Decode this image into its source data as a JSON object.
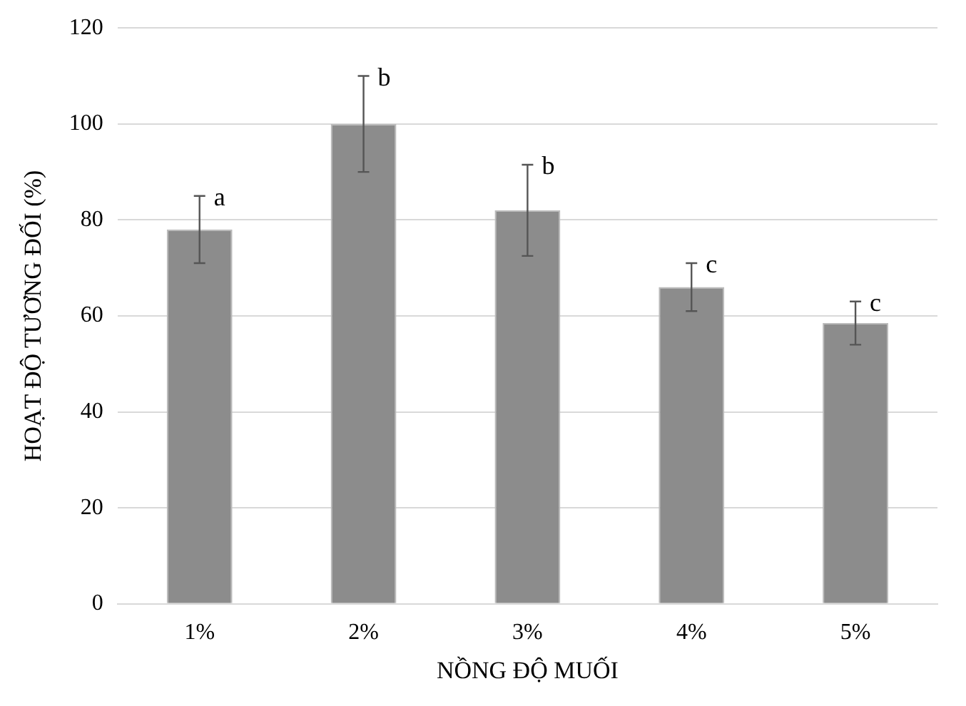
{
  "chart_data": {
    "type": "bar",
    "xlabel": "NỒNG ĐỘ MUỐI",
    "ylabel": "HOẠT ĐỘ TƯƠNG ĐỐI (%)",
    "categories": [
      "1%",
      "2%",
      "3%",
      "4%",
      "5%"
    ],
    "values": [
      78,
      100,
      82,
      66,
      58.5
    ],
    "errors": [
      7,
      10,
      9.5,
      5,
      4.5
    ],
    "color": "#8c8c8c",
    "ylim": [
      0,
      120
    ],
    "yticks": [
      0,
      20,
      40,
      60,
      80,
      100,
      120
    ],
    "grid": "y",
    "legend": false,
    "annotations": [
      {
        "text": "a",
        "x": "1%",
        "y": 85
      },
      {
        "text": "b",
        "x": "2%",
        "y": 110
      },
      {
        "text": "b",
        "x": "3%",
        "y": 91.5
      },
      {
        "text": "c",
        "x": "4%",
        "y": 71
      },
      {
        "text": "c",
        "x": "5%",
        "y": 63
      }
    ]
  }
}
